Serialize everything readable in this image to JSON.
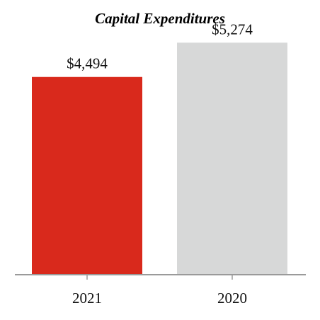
{
  "chart_data": {
    "type": "bar",
    "title": "Capital Expenditures",
    "categories": [
      "2021",
      "2020"
    ],
    "values": [
      4494,
      5274
    ],
    "value_labels": [
      "$4,494",
      "$5,274"
    ],
    "colors": [
      "#d9291c",
      "#d7d8d8"
    ],
    "axis_color": "#9a9a9a",
    "ylim": [
      0,
      5600
    ],
    "grid": false,
    "legend": "none"
  }
}
